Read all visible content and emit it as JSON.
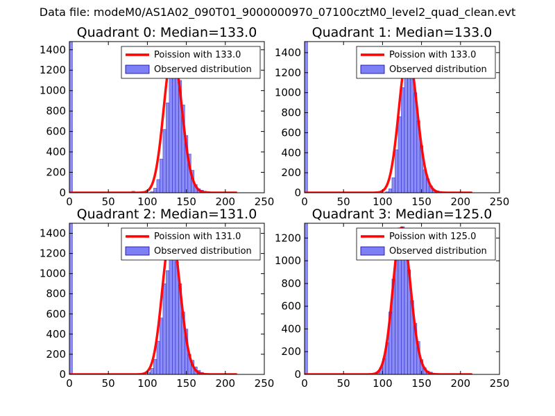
{
  "suptitle": "Data file: modeM0/AS1A02_090T01_9000000970_07100cztM0_level2_quad_clean.evt",
  "colors": {
    "fit": "#ff0000",
    "hist_fill": "#7f7ff5",
    "hist_edge": "#0000aa",
    "axis": "#000000"
  },
  "chart_data": [
    {
      "type": "bar",
      "title": "Quadrant 0: Median=133.0",
      "xlim": [
        0,
        250
      ],
      "ylim": [
        0,
        1480
      ],
      "xticks": [
        "0",
        "50",
        "100",
        "150",
        "200",
        "250"
      ],
      "yticks": [
        "0",
        "200",
        "400",
        "600",
        "800",
        "1000",
        "1200",
        "1400"
      ],
      "ytick_values": [
        0,
        200,
        400,
        600,
        800,
        1000,
        1200,
        1400
      ],
      "legend": {
        "fit": "Poission with 133.0",
        "hist": "Observed distribution",
        "placement": "top-right"
      },
      "poisson_mean": 133.0,
      "poisson_peak": 1380,
      "bin_width": 4,
      "bins": [
        [
          0,
          1480
        ],
        [
          80,
          15
        ],
        [
          104,
          10
        ],
        [
          108,
          45
        ],
        [
          112,
          130
        ],
        [
          116,
          330
        ],
        [
          120,
          620
        ],
        [
          124,
          880
        ],
        [
          128,
          1160
        ],
        [
          132,
          1300
        ],
        [
          136,
          1340
        ],
        [
          140,
          1100
        ],
        [
          144,
          860
        ],
        [
          148,
          560
        ],
        [
          152,
          380
        ],
        [
          156,
          220
        ],
        [
          160,
          80
        ],
        [
          164,
          40
        ],
        [
          168,
          25
        ],
        [
          172,
          15
        ],
        [
          176,
          10
        ],
        [
          180,
          5
        ],
        [
          184,
          3
        ]
      ]
    },
    {
      "type": "bar",
      "title": "Quadrant 1: Median=133.0",
      "xlim": [
        0,
        250
      ],
      "ylim": [
        0,
        1510
      ],
      "xticks": [
        "0",
        "50",
        "100",
        "150",
        "200",
        "250"
      ],
      "yticks": [
        "0",
        "200",
        "400",
        "600",
        "800",
        "1000",
        "1200",
        "1400"
      ],
      "ytick_values": [
        0,
        200,
        400,
        600,
        800,
        1000,
        1200,
        1400
      ],
      "legend": {
        "fit": "Poission with 133.0",
        "hist": "Observed distribution",
        "placement": "top-right"
      },
      "poisson_mean": 133.0,
      "poisson_peak": 1400,
      "bin_width": 4,
      "bins": [
        [
          0,
          1510
        ],
        [
          104,
          10
        ],
        [
          108,
          40
        ],
        [
          112,
          150
        ],
        [
          116,
          430
        ],
        [
          120,
          760
        ],
        [
          124,
          1050
        ],
        [
          128,
          1330
        ],
        [
          132,
          1380
        ],
        [
          136,
          1170
        ],
        [
          140,
          1000
        ],
        [
          144,
          720
        ],
        [
          148,
          470
        ],
        [
          152,
          230
        ],
        [
          156,
          140
        ],
        [
          160,
          70
        ],
        [
          164,
          30
        ],
        [
          168,
          20
        ],
        [
          172,
          10
        ],
        [
          176,
          5
        ]
      ]
    },
    {
      "type": "bar",
      "title": "Quadrant 2: Median=131.0",
      "xlim": [
        0,
        250
      ],
      "ylim": [
        0,
        1500
      ],
      "xticks": [
        "0",
        "50",
        "100",
        "150",
        "200",
        "250"
      ],
      "yticks": [
        "0",
        "200",
        "400",
        "600",
        "800",
        "1000",
        "1200",
        "1400"
      ],
      "ytick_values": [
        0,
        200,
        400,
        600,
        800,
        1000,
        1200,
        1400
      ],
      "legend": {
        "fit": "Poission with 131.0",
        "hist": "Observed distribution",
        "placement": "top-right"
      },
      "poisson_mean": 131.0,
      "poisson_peak": 1400,
      "bin_width": 4,
      "bins": [
        [
          0,
          1500
        ],
        [
          100,
          20
        ],
        [
          104,
          60
        ],
        [
          108,
          150
        ],
        [
          112,
          330
        ],
        [
          116,
          560
        ],
        [
          120,
          900
        ],
        [
          124,
          1030
        ],
        [
          128,
          1280
        ],
        [
          132,
          1400
        ],
        [
          136,
          1120
        ],
        [
          140,
          900
        ],
        [
          144,
          620
        ],
        [
          148,
          450
        ],
        [
          152,
          200
        ],
        [
          156,
          140
        ],
        [
          160,
          75
        ],
        [
          164,
          40
        ],
        [
          168,
          20
        ],
        [
          172,
          10
        ],
        [
          176,
          5
        ]
      ]
    },
    {
      "type": "bar",
      "title": "Quadrant 3: Median=125.0",
      "xlim": [
        0,
        250
      ],
      "ylim": [
        0,
        1330
      ],
      "xticks": [
        "0",
        "50",
        "100",
        "150",
        "200",
        "250"
      ],
      "yticks": [
        "0",
        "200",
        "400",
        "600",
        "800",
        "1000",
        "1200"
      ],
      "ytick_values": [
        0,
        200,
        400,
        600,
        800,
        1000,
        1200
      ],
      "legend": {
        "fit": "Poission with 125.0",
        "hist": "Observed distribution",
        "placement": "top-right"
      },
      "poisson_mean": 125.0,
      "poisson_peak": 1290,
      "bin_width": 4,
      "bins": [
        [
          0,
          1330
        ],
        [
          92,
          20
        ],
        [
          96,
          60
        ],
        [
          100,
          140
        ],
        [
          104,
          280
        ],
        [
          108,
          550
        ],
        [
          112,
          840
        ],
        [
          116,
          1010
        ],
        [
          120,
          1290
        ],
        [
          124,
          1300
        ],
        [
          128,
          1160
        ],
        [
          132,
          920
        ],
        [
          136,
          650
        ],
        [
          140,
          450
        ],
        [
          144,
          290
        ],
        [
          148,
          130
        ],
        [
          152,
          60
        ],
        [
          156,
          30
        ],
        [
          160,
          20
        ],
        [
          164,
          10
        ],
        [
          168,
          5
        ]
      ]
    }
  ]
}
